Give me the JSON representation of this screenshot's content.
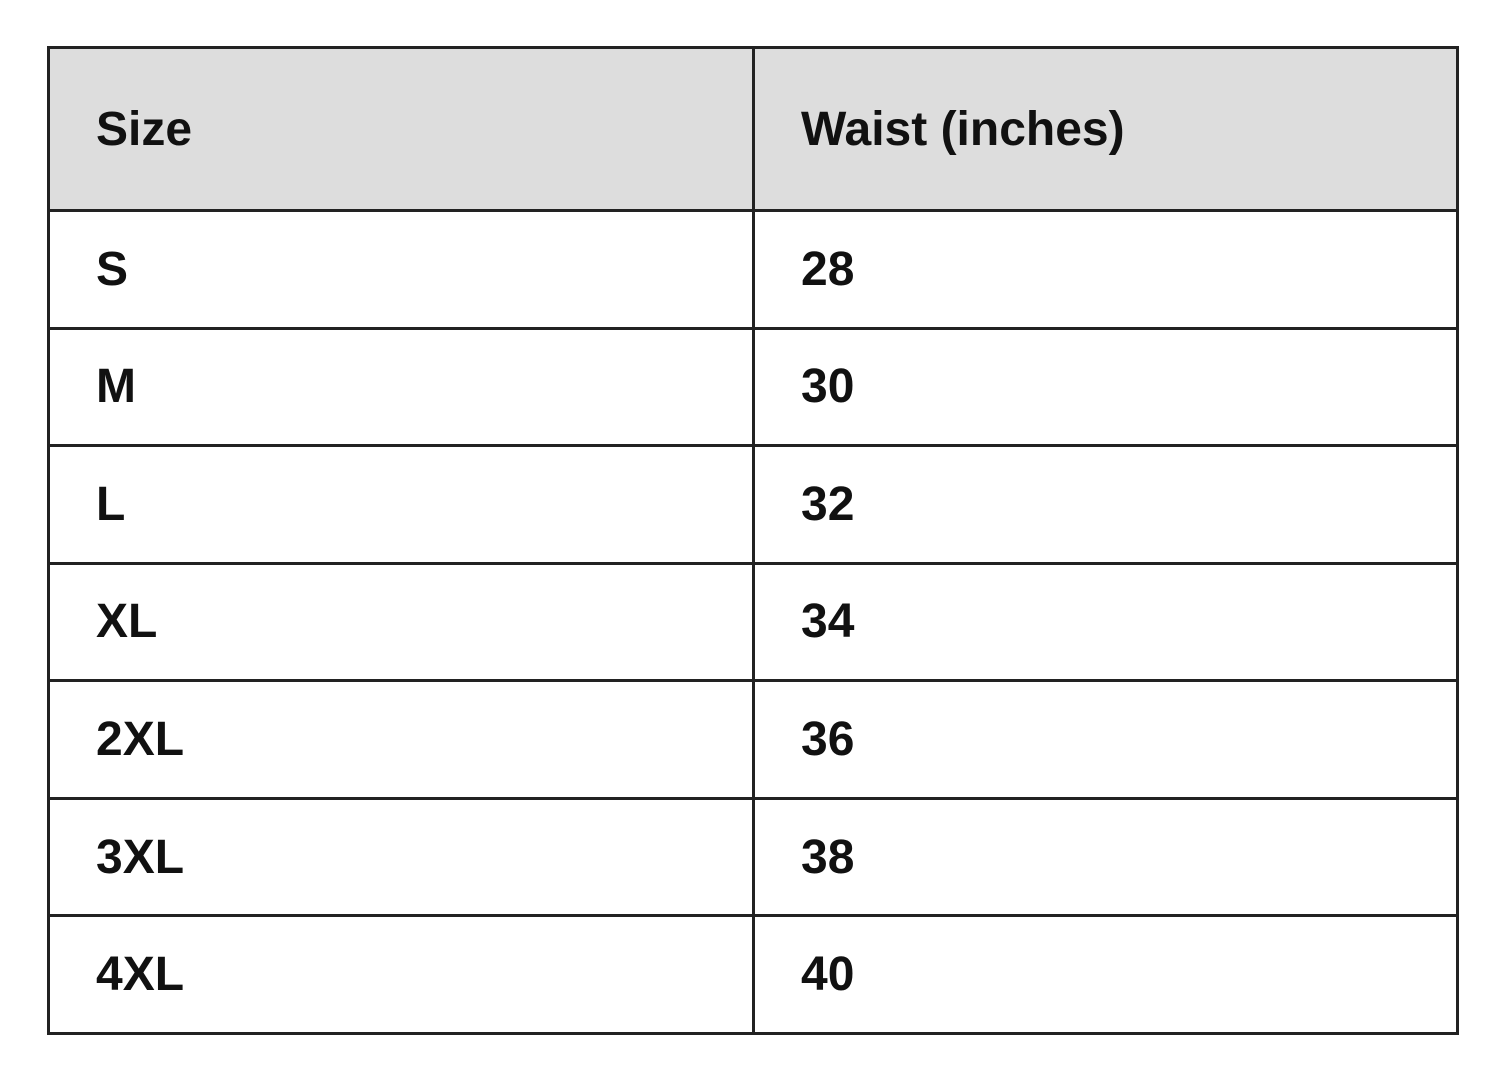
{
  "table": {
    "headers": [
      "Size",
      "Waist (inches)"
    ],
    "rows": [
      [
        "S",
        "28"
      ],
      [
        "M",
        "30"
      ],
      [
        "L",
        "32"
      ],
      [
        "XL",
        "34"
      ],
      [
        "2XL",
        "36"
      ],
      [
        "3XL",
        "38"
      ],
      [
        "4XL",
        "40"
      ]
    ]
  },
  "colors": {
    "header_bg": "#dddddd",
    "border": "#222222"
  }
}
